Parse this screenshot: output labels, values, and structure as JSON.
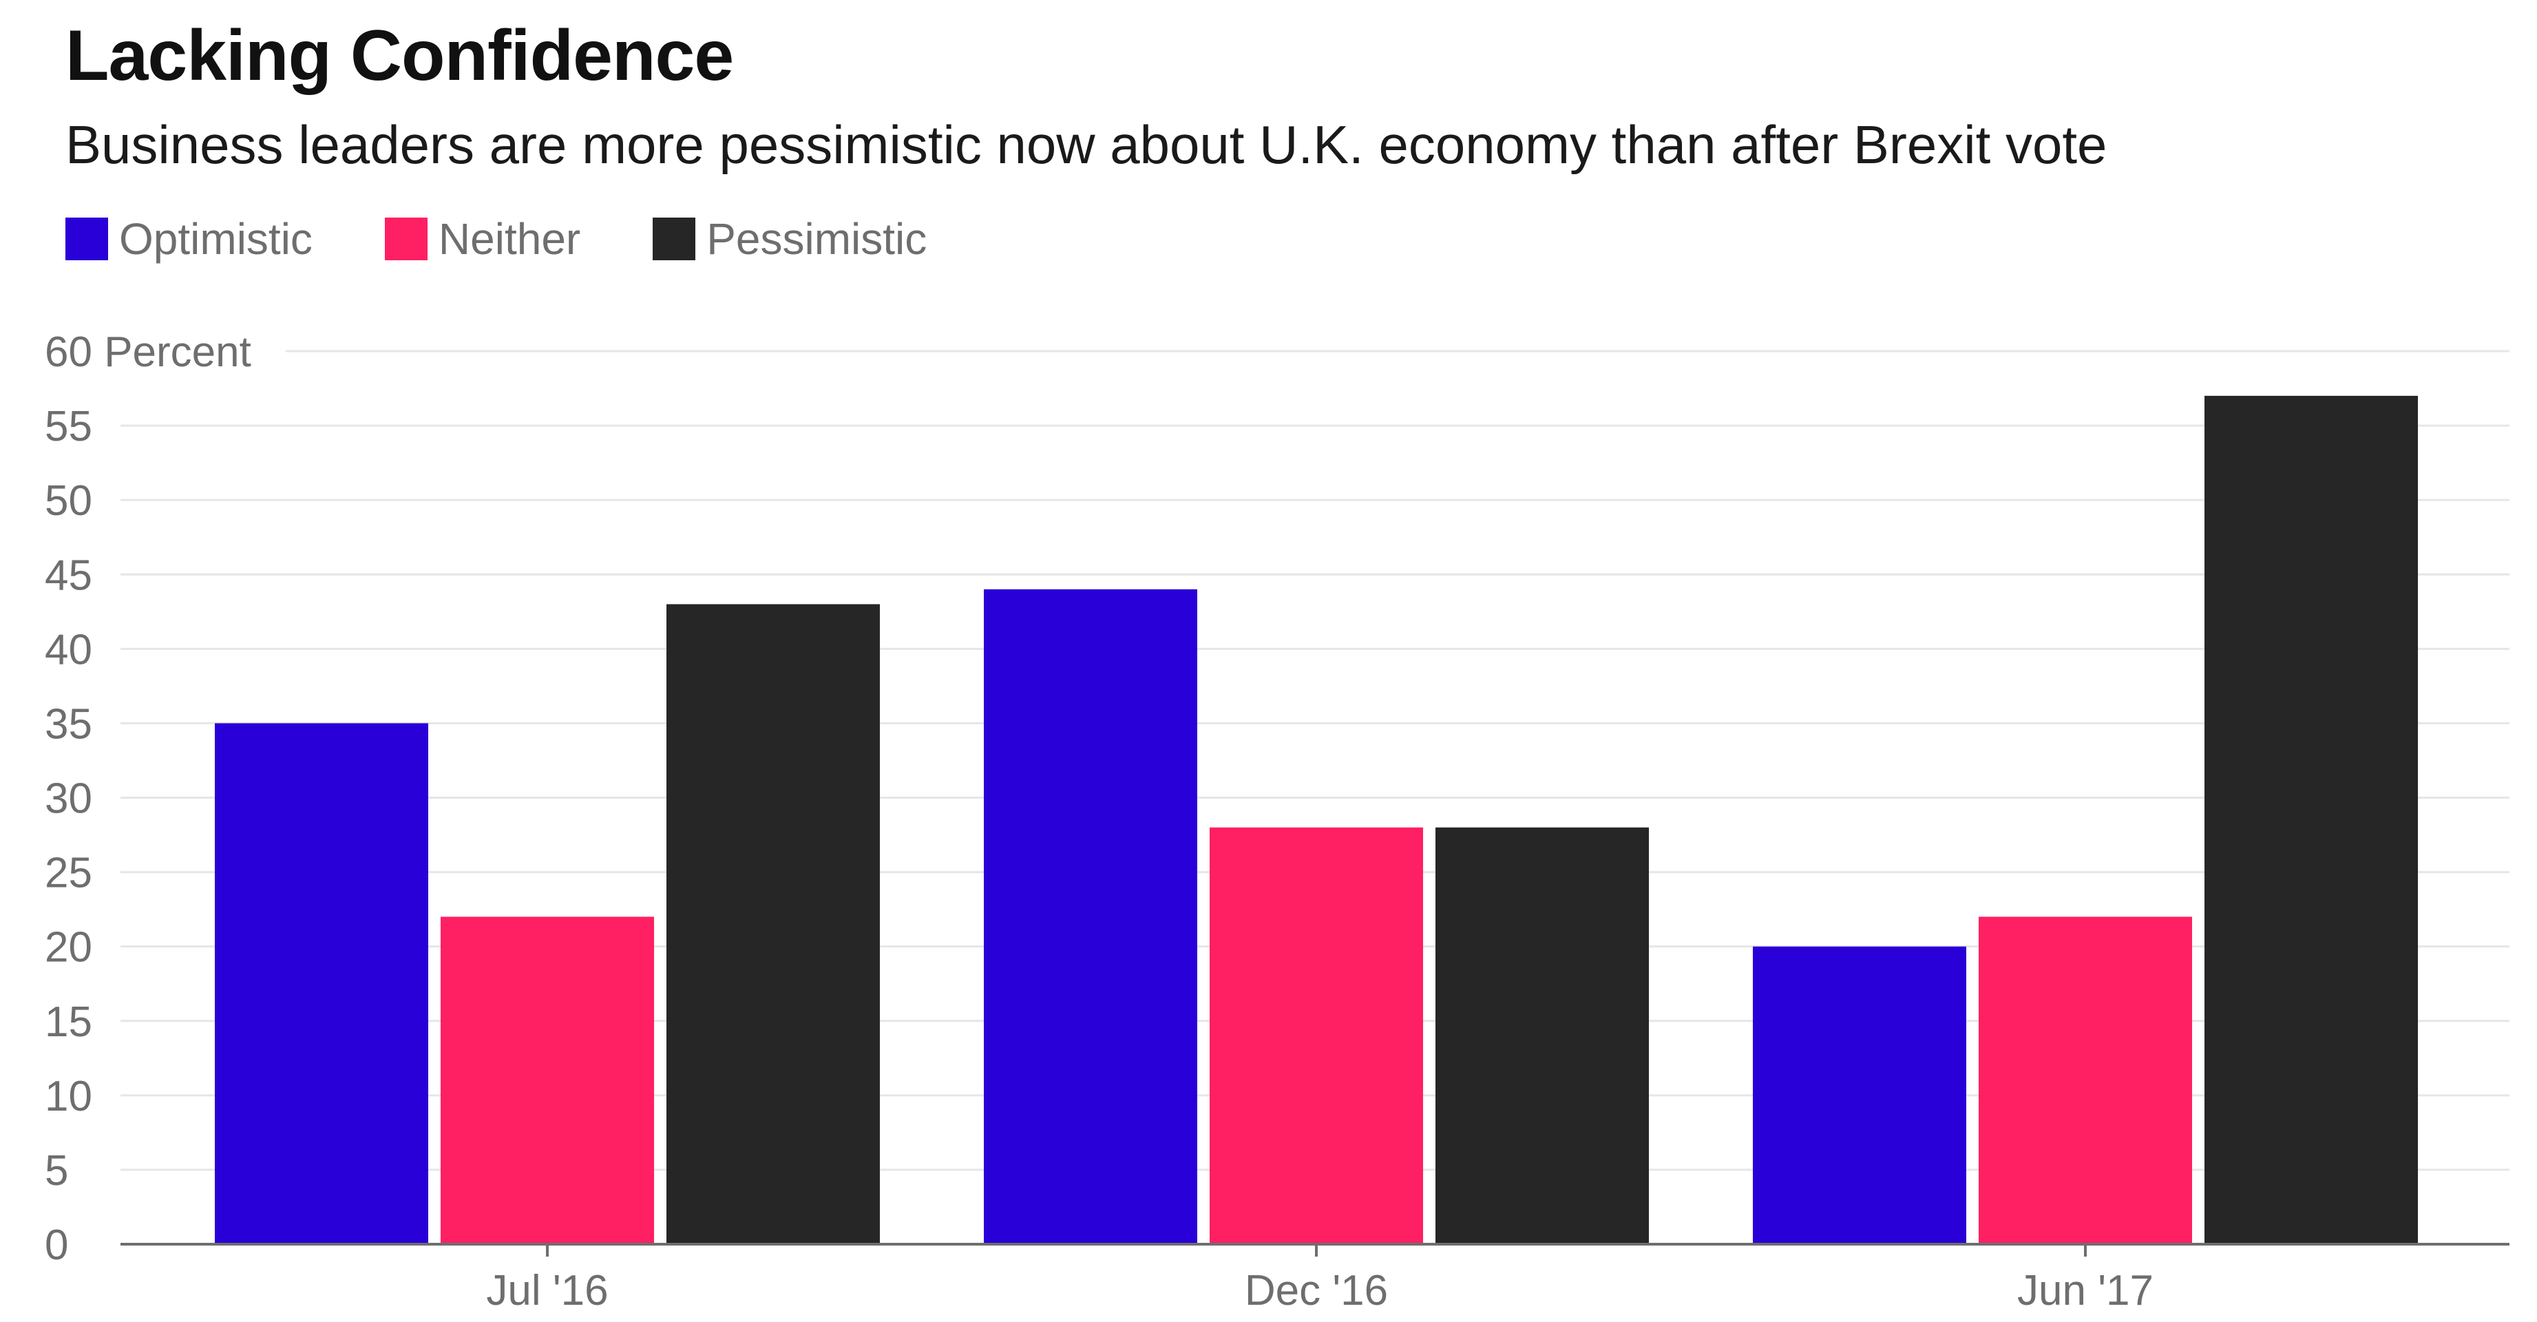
{
  "title": "Lacking Confidence",
  "subtitle": "Business leaders are more pessimistic now about U.K. economy than after Brexit vote",
  "legend": [
    {
      "label": "Optimistic",
      "color": "#2a00d9"
    },
    {
      "label": "Neither",
      "color": "#ff1f63"
    },
    {
      "label": "Pessimistic",
      "color": "#262626"
    }
  ],
  "chart_data": {
    "type": "bar",
    "title": "Lacking Confidence",
    "subtitle": "Business leaders are more pessimistic now about U.K. economy than after Brexit vote",
    "xlabel": "",
    "ylabel": "Percent",
    "ylim": [
      0,
      60
    ],
    "yticks": [
      0,
      5,
      10,
      15,
      20,
      25,
      30,
      35,
      40,
      45,
      50,
      55,
      60
    ],
    "ytick_top_label": "60 Percent",
    "categories": [
      "Jul '16",
      "Dec '16",
      "Jun '17"
    ],
    "series": [
      {
        "name": "Optimistic",
        "color": "#2a00d9",
        "values": [
          35,
          44,
          20
        ]
      },
      {
        "name": "Neither",
        "color": "#ff1f63",
        "values": [
          22,
          28,
          22
        ]
      },
      {
        "name": "Pessimistic",
        "color": "#262626",
        "values": [
          43,
          28,
          57
        ]
      }
    ],
    "grid": true,
    "legend_position": "top-left"
  }
}
